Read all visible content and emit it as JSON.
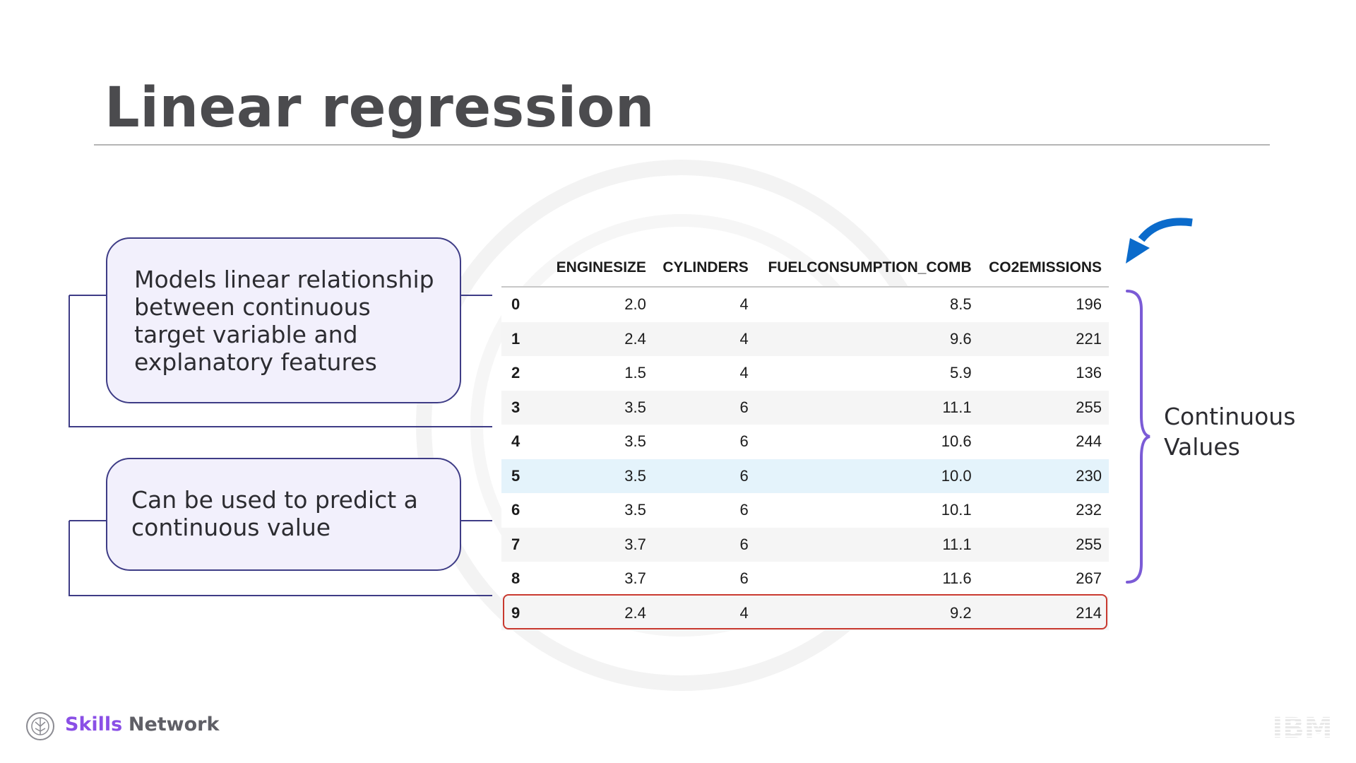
{
  "slide": {
    "title": "Linear regression"
  },
  "callouts": [
    {
      "lines": [
        "Models linear relationship",
        "between continuous",
        "target variable and",
        "explanatory features"
      ]
    },
    {
      "lines": [
        "Can be used to predict a",
        "continuous value"
      ]
    }
  ],
  "table": {
    "columns": [
      "",
      "ENGINESIZE",
      "CYLINDERS",
      "FUELCONSUMPTION_COMB",
      "CO2EMISSIONS"
    ],
    "rows": [
      [
        "0",
        "2.0",
        "4",
        "8.5",
        "196"
      ],
      [
        "1",
        "2.4",
        "4",
        "9.6",
        "221"
      ],
      [
        "2",
        "1.5",
        "4",
        "5.9",
        "136"
      ],
      [
        "3",
        "3.5",
        "6",
        "11.1",
        "255"
      ],
      [
        "4",
        "3.5",
        "6",
        "10.6",
        "244"
      ],
      [
        "5",
        "3.5",
        "6",
        "10.0",
        "230"
      ],
      [
        "6",
        "3.5",
        "6",
        "10.1",
        "232"
      ],
      [
        "7",
        "3.7",
        "6",
        "11.1",
        "255"
      ],
      [
        "8",
        "3.7",
        "6",
        "11.6",
        "267"
      ],
      [
        "9",
        "2.4",
        "4",
        "9.2",
        "214"
      ]
    ],
    "highlighted_row": "5",
    "outlined_row": "9"
  },
  "annotation": {
    "brace_label_line1": "Continuous",
    "brace_label_line2": "Values",
    "arrow_icon": "curved-arrow-icon",
    "brace_icon": "curly-brace-icon"
  },
  "footer": {
    "brand_part1": "Skills",
    "brand_part2": "Network",
    "ibm_label": "IBM",
    "skills_logo_icon": "skills-network-logo-icon",
    "ibm_logo_icon": "ibm-logo-icon"
  },
  "colors": {
    "title": "#4b4b4e",
    "callout_fill": "#f2f0fc",
    "callout_border": "#3e3c86",
    "brace": "#7b5bd6",
    "arrow": "#0b6bcb",
    "outline": "#c8382e",
    "highlight_row": "#e4f3fb",
    "brand_purple": "#8a4fe6"
  }
}
